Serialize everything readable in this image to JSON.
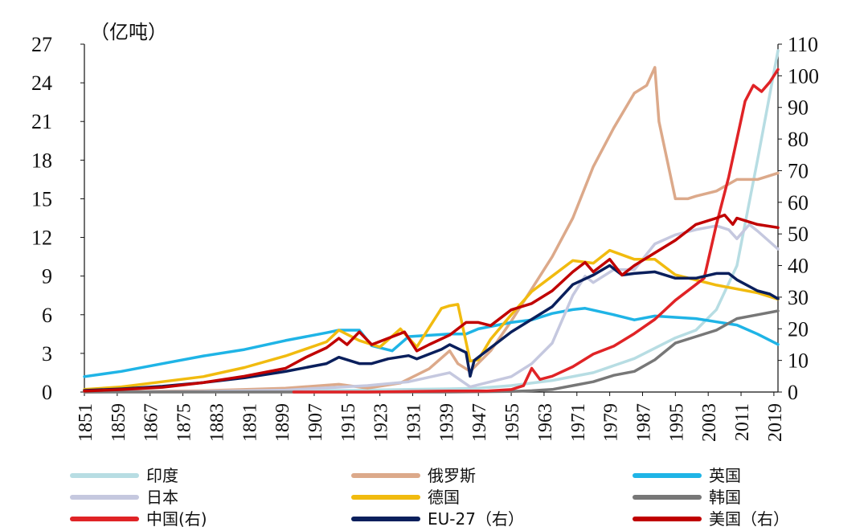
{
  "chart_data": {
    "type": "line",
    "title": "",
    "unit_label": "（亿吨）",
    "left_axis": {
      "ylim": [
        0,
        27
      ],
      "ticks": [
        "0",
        "3",
        "6",
        "9",
        "12",
        "15",
        "18",
        "21",
        "24",
        "27"
      ]
    },
    "right_axis": {
      "ylim": [
        0,
        110
      ],
      "ticks": [
        "0",
        "10",
        "20",
        "30",
        "40",
        "50",
        "60",
        "70",
        "80",
        "90",
        "100",
        "110"
      ]
    },
    "x_range": [
      1851,
      2020
    ],
    "x_ticks": [
      "1851",
      "1859",
      "1867",
      "1875",
      "1883",
      "1891",
      "1899",
      "1907",
      "1915",
      "1923",
      "1931",
      "1939",
      "1947",
      "1955",
      "1963",
      "1971",
      "1979",
      "1987",
      "1995",
      "2003",
      "2011",
      "2019"
    ],
    "legend_position": "bottom",
    "series": [
      {
        "name": "印度",
        "color": "#b7dde3",
        "axis": "left",
        "x": [
          1851,
          1880,
          1900,
          1920,
          1940,
          1947,
          1955,
          1965,
          1975,
          1985,
          1995,
          2000,
          2005,
          2010,
          2015,
          2020
        ],
        "y": [
          0,
          0.05,
          0.1,
          0.15,
          0.25,
          0.3,
          0.5,
          0.9,
          1.5,
          2.6,
          4.2,
          4.8,
          6.4,
          9.8,
          18,
          26.5
        ]
      },
      {
        "name": "俄罗斯",
        "color": "#dca98a",
        "axis": "left",
        "x": [
          1851,
          1880,
          1900,
          1913,
          1920,
          1928,
          1935,
          1940,
          1942,
          1945,
          1950,
          1955,
          1960,
          1965,
          1970,
          1975,
          1980,
          1985,
          1988,
          1990,
          1991,
          1993,
          1995,
          1998,
          2000,
          2005,
          2010,
          2015,
          2020
        ],
        "y": [
          0,
          0.1,
          0.3,
          0.6,
          0.3,
          0.7,
          1.8,
          3.2,
          2.2,
          1.6,
          3.2,
          5.5,
          8,
          10.5,
          13.5,
          17.5,
          20.5,
          23.2,
          23.8,
          25.2,
          21,
          18,
          15,
          15,
          15.2,
          15.6,
          16.5,
          16.5,
          17
        ]
      },
      {
        "name": "英国",
        "color": "#1fb4e6",
        "axis": "left",
        "x": [
          1851,
          1860,
          1870,
          1880,
          1890,
          1900,
          1910,
          1913,
          1918,
          1921,
          1926,
          1930,
          1940,
          1944,
          1947,
          1955,
          1960,
          1965,
          1970,
          1973,
          1980,
          1985,
          1990,
          2000,
          2010,
          2015,
          2020
        ],
        "y": [
          1.2,
          1.6,
          2.2,
          2.8,
          3.3,
          4,
          4.6,
          4.8,
          4.8,
          3.6,
          3.2,
          4.3,
          4.5,
          4.5,
          4.9,
          5.4,
          5.6,
          6.1,
          6.4,
          6.5,
          6.0,
          5.6,
          5.9,
          5.7,
          5.2,
          4.5,
          3.7
        ]
      },
      {
        "name": "日本",
        "color": "#c5c8df",
        "axis": "left",
        "x": [
          1851,
          1880,
          1900,
          1920,
          1930,
          1940,
          1945,
          1950,
          1955,
          1960,
          1965,
          1970,
          1973,
          1975,
          1980,
          1985,
          1990,
          1995,
          2000,
          2005,
          2008,
          2010,
          2013,
          2015,
          2020
        ],
        "y": [
          0,
          0.05,
          0.15,
          0.5,
          0.8,
          1.5,
          0.4,
          0.8,
          1.2,
          2.2,
          3.8,
          7.5,
          9,
          8.5,
          9.5,
          9.5,
          11.5,
          12.2,
          12.6,
          12.9,
          12.6,
          11.9,
          13,
          12.5,
          11.1
        ]
      },
      {
        "name": "德国",
        "color": "#f1bb0f",
        "axis": "left",
        "x": [
          1851,
          1860,
          1870,
          1880,
          1890,
          1900,
          1910,
          1913,
          1918,
          1923,
          1928,
          1932,
          1938,
          1940,
          1942,
          1945,
          1947,
          1950,
          1955,
          1960,
          1965,
          1970,
          1975,
          1979,
          1985,
          1990,
          1995,
          2000,
          2005,
          2010,
          2015,
          2020
        ],
        "y": [
          0.2,
          0.4,
          0.8,
          1.2,
          1.9,
          2.8,
          3.9,
          4.8,
          4.0,
          3.5,
          4.9,
          3.5,
          6.5,
          6.7,
          6.8,
          2.4,
          2.5,
          4.1,
          6.0,
          7.8,
          9.0,
          10.2,
          10.0,
          11.0,
          10.3,
          10.3,
          9.1,
          8.7,
          8.3,
          8.0,
          7.7,
          7.2
        ]
      },
      {
        "name": "韩国",
        "color": "#777777",
        "axis": "left",
        "x": [
          1851,
          1940,
          1955,
          1960,
          1965,
          1970,
          1975,
          1980,
          1985,
          1990,
          1995,
          2000,
          2005,
          2010,
          2015,
          2020
        ],
        "y": [
          0,
          0,
          0.05,
          0.1,
          0.2,
          0.5,
          0.8,
          1.3,
          1.6,
          2.5,
          3.8,
          4.3,
          4.8,
          5.7,
          6.0,
          6.3
        ]
      },
      {
        "name": "中国(右)",
        "color": "#e02326",
        "axis": "right",
        "x": [
          1902,
          1920,
          1940,
          1949,
          1955,
          1958,
          1960,
          1962,
          1965,
          1970,
          1975,
          1980,
          1985,
          1990,
          1995,
          2000,
          2002,
          2005,
          2008,
          2010,
          2012,
          2014,
          2016,
          2018,
          2020
        ],
        "y": [
          0,
          0,
          0.3,
          0.3,
          0.8,
          2,
          7.5,
          4,
          5,
          8,
          12,
          14.5,
          18.5,
          23,
          29,
          34,
          36,
          53,
          68,
          80,
          92,
          97,
          95,
          98,
          102
        ]
      },
      {
        "name": "EU-27（右）",
        "color": "#0a1f5c",
        "axis": "right",
        "x": [
          1851,
          1860,
          1870,
          1880,
          1890,
          1900,
          1910,
          1913,
          1918,
          1921,
          1925,
          1930,
          1932,
          1938,
          1940,
          1944,
          1945,
          1946,
          1950,
          1955,
          1960,
          1965,
          1970,
          1975,
          1979,
          1982,
          1985,
          1990,
          1995,
          2000,
          2005,
          2008,
          2010,
          2015,
          2018,
          2020
        ],
        "y": [
          0.5,
          1,
          1.8,
          3,
          4.5,
          6.5,
          9,
          11,
          9,
          9,
          10.5,
          11.5,
          10.5,
          13.5,
          15,
          12.5,
          5,
          10,
          14,
          19,
          23,
          27,
          34,
          37,
          40,
          37,
          37.5,
          38,
          36,
          36,
          37.5,
          37.5,
          35.5,
          32,
          31,
          29.5
        ]
      },
      {
        "name": "美国（右）",
        "color": "#c00000",
        "axis": "right",
        "x": [
          1851,
          1860,
          1870,
          1880,
          1890,
          1900,
          1905,
          1910,
          1913,
          1915,
          1918,
          1921,
          1925,
          1929,
          1932,
          1935,
          1940,
          1944,
          1947,
          1950,
          1955,
          1960,
          1965,
          1970,
          1973,
          1975,
          1979,
          1982,
          1985,
          1990,
          1995,
          2000,
          2005,
          2007,
          2009,
          2010,
          2015,
          2020
        ],
        "y": [
          0.3,
          0.8,
          1.5,
          3,
          5,
          7.5,
          11,
          14,
          17,
          15,
          19,
          15,
          17,
          19,
          13,
          15,
          18,
          22,
          22,
          21,
          26,
          28,
          32,
          38,
          41,
          38,
          42,
          37,
          40,
          44,
          48,
          53,
          55,
          56,
          53,
          55,
          53,
          52
        ]
      }
    ]
  }
}
